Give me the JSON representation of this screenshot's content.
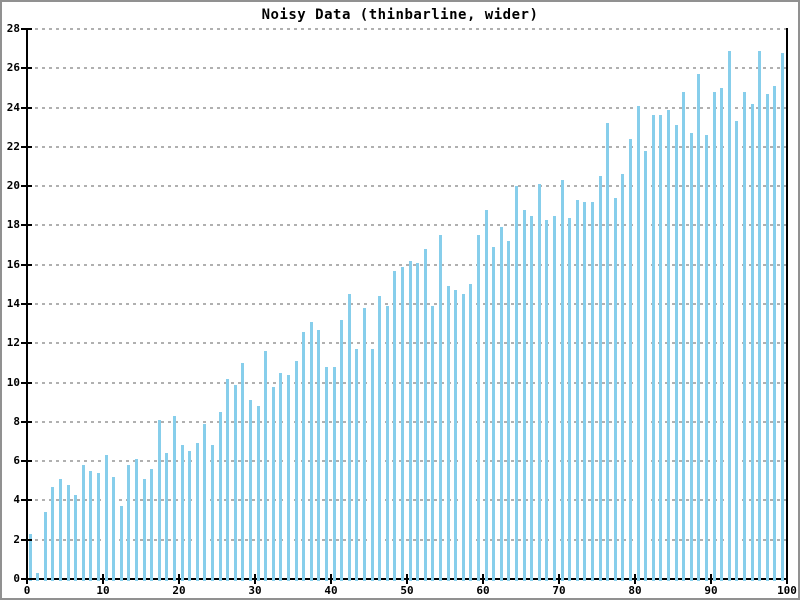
{
  "chart_data": {
    "type": "bar",
    "title": "Noisy Data (thinbarline, wider)",
    "xlabel": "",
    "ylabel": "",
    "xlim": [
      0,
      100
    ],
    "ylim": [
      0,
      28
    ],
    "x_start": 0,
    "x_step": 1,
    "x_ticks": [
      0,
      10,
      20,
      30,
      40,
      50,
      60,
      70,
      80,
      90,
      100
    ],
    "y_ticks": [
      0,
      2,
      4,
      6,
      8,
      10,
      12,
      14,
      16,
      18,
      20,
      22,
      24,
      26,
      28
    ],
    "grid": "horizontal-dashed",
    "legend": "none",
    "bar_style": "thin",
    "values": [
      2.3,
      0.3,
      3.4,
      4.7,
      5.1,
      4.8,
      4.3,
      5.8,
      5.5,
      5.4,
      6.3,
      5.2,
      3.7,
      5.8,
      6.1,
      5.1,
      5.6,
      8.1,
      6.4,
      8.3,
      6.8,
      6.5,
      6.9,
      7.9,
      6.8,
      8.5,
      10.2,
      9.9,
      11.0,
      9.1,
      8.8,
      11.6,
      9.8,
      10.5,
      10.4,
      11.1,
      12.6,
      13.1,
      12.7,
      10.8,
      10.8,
      13.2,
      14.5,
      11.7,
      13.8,
      11.7,
      14.4,
      13.9,
      15.7,
      15.9,
      16.2,
      16.1,
      16.8,
      13.9,
      17.5,
      14.9,
      14.7,
      14.5,
      15.0,
      17.5,
      18.8,
      16.9,
      17.9,
      17.2,
      20.0,
      18.8,
      18.5,
      20.1,
      18.3,
      18.5,
      20.3,
      18.4,
      19.3,
      19.2,
      19.2,
      20.5,
      23.2,
      19.4,
      20.6,
      22.4,
      24.1,
      21.8,
      23.6,
      23.6,
      23.9,
      23.1,
      24.8,
      22.7,
      25.7,
      22.6,
      24.8,
      25.0,
      26.9,
      23.3,
      24.8,
      24.2,
      26.9,
      24.7,
      25.1,
      26.8
    ],
    "colors": {
      "bar": "#87CEEB",
      "grid": "#b0b0b0",
      "axis": "#000000",
      "background": "#ffffff",
      "frame_border": "#919191",
      "text": "#000000"
    }
  }
}
